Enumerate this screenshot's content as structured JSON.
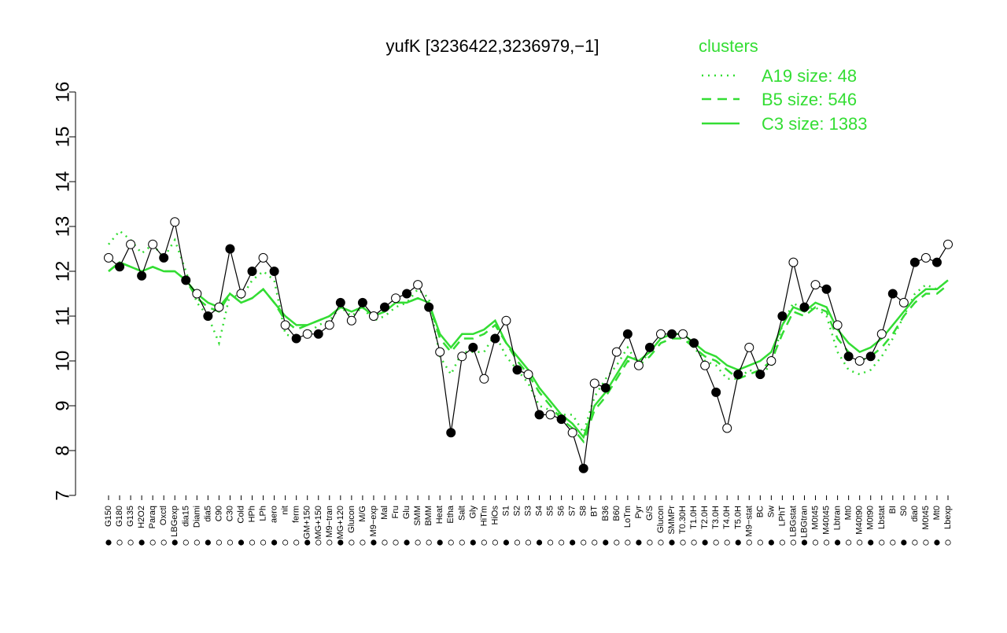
{
  "chart_data": {
    "type": "line",
    "title": "yufK [3236422,3236979,−1]",
    "xlabel": "",
    "ylabel": "",
    "ylim": [
      7,
      16
    ],
    "yticks": [
      7,
      8,
      9,
      10,
      11,
      12,
      13,
      14,
      15,
      16
    ],
    "categories": [
      "G150",
      "G180",
      "G135",
      "H2O2",
      "Paraq",
      "Oxctl",
      "LBGexp",
      "dia15",
      "Diami",
      "dia5",
      "C90",
      "C30",
      "Cold",
      "HPh",
      "LPh",
      "aero",
      "nit",
      "ferm",
      "GM+150",
      "MG+150",
      "M9−tran",
      "MG+120",
      "Glucon",
      "M/G",
      "M9−exp",
      "Mal",
      "Fru",
      "Glu",
      "SMM",
      "BMM",
      "Heat",
      "Etha",
      "Salt",
      "Gly",
      "HiTm",
      "HiOs",
      "S1",
      "S2",
      "S3",
      "S4",
      "S5",
      "S6",
      "S7",
      "S8",
      "BT",
      "B36",
      "B60",
      "LoTm",
      "Pyr",
      "G/S",
      "Glucon",
      "SMMPr",
      "T0.30H",
      "T1.0H",
      "T2.0H",
      "T3.0H",
      "T4.0H",
      "T5.0H",
      "M9−stat",
      "BC",
      "Sw",
      "LPhT",
      "LBGstat",
      "LBGtran",
      "M0t45",
      "M40t45",
      "Lbtran",
      "Mt0",
      "M40t90",
      "M0t90",
      "Lbstat",
      "BI",
      "S0",
      "dia0",
      "M0t45",
      "Mt0",
      "Lbexp"
    ],
    "series": [
      {
        "name": "A19 size: 48",
        "style": "dotted",
        "values": [
          12.6,
          12.9,
          12.7,
          12.4,
          12.6,
          12.3,
          12.7,
          12.0,
          11.3,
          11.0,
          10.4,
          11.5,
          11.4,
          11.8,
          12.0,
          11.8,
          10.6,
          10.5,
          10.6,
          10.8,
          10.9,
          11.2,
          11.0,
          11.2,
          10.9,
          11.0,
          11.2,
          11.3,
          11.6,
          11.4,
          10.1,
          9.7,
          10.2,
          10.2,
          10.2,
          10.6,
          10.1,
          9.8,
          9.5,
          9.0,
          8.9,
          8.8,
          8.8,
          8.4,
          9.2,
          9.6,
          9.9,
          10.3,
          9.9,
          10.2,
          10.5,
          10.6,
          10.6,
          10.3,
          10.0,
          9.9,
          9.6,
          9.6,
          9.8,
          9.7,
          9.9,
          10.8,
          11.3,
          11.1,
          11.2,
          11.0,
          10.2,
          9.8,
          9.7,
          9.8,
          10.1,
          10.5,
          11.0,
          11.5,
          11.7,
          11.6,
          11.8
        ]
      },
      {
        "name": "B5 size: 546",
        "style": "dashed",
        "values": [
          12.0,
          12.2,
          12.1,
          12.0,
          12.1,
          12.0,
          12.0,
          11.8,
          11.4,
          11.2,
          11.1,
          11.5,
          11.3,
          11.4,
          11.6,
          11.3,
          10.9,
          10.7,
          10.8,
          10.9,
          11.0,
          11.2,
          11.1,
          11.2,
          11.0,
          11.1,
          11.3,
          11.3,
          11.4,
          11.3,
          10.5,
          10.2,
          10.5,
          10.5,
          10.6,
          10.8,
          10.4,
          10.0,
          9.7,
          9.3,
          9.0,
          8.7,
          8.5,
          8.2,
          8.9,
          9.2,
          9.6,
          10.0,
          9.9,
          10.1,
          10.4,
          10.5,
          10.5,
          10.3,
          10.1,
          10.0,
          9.8,
          9.6,
          9.7,
          9.8,
          10.0,
          10.6,
          11.1,
          11.0,
          11.2,
          11.1,
          10.5,
          10.2,
          10.0,
          10.1,
          10.3,
          10.6,
          11.0,
          11.3,
          11.5,
          11.5,
          11.7
        ]
      },
      {
        "name": "C3 size: 1383",
        "style": "solid",
        "values": [
          12.0,
          12.2,
          12.1,
          12.0,
          12.1,
          12.0,
          12.0,
          11.8,
          11.5,
          11.3,
          11.2,
          11.5,
          11.3,
          11.4,
          11.6,
          11.3,
          11.0,
          10.8,
          10.8,
          10.9,
          11.0,
          11.2,
          11.1,
          11.2,
          11.0,
          11.1,
          11.3,
          11.3,
          11.4,
          11.3,
          10.6,
          10.3,
          10.6,
          10.6,
          10.7,
          10.9,
          10.4,
          10.1,
          9.8,
          9.4,
          9.1,
          8.8,
          8.6,
          8.3,
          9.0,
          9.3,
          9.7,
          10.1,
          10.0,
          10.2,
          10.5,
          10.6,
          10.6,
          10.4,
          10.2,
          10.1,
          9.9,
          9.8,
          9.9,
          10.0,
          10.2,
          10.8,
          11.2,
          11.1,
          11.3,
          11.2,
          10.7,
          10.4,
          10.2,
          10.3,
          10.5,
          10.8,
          11.1,
          11.4,
          11.6,
          11.6,
          11.8
        ]
      }
    ],
    "observed": {
      "name": "",
      "values": [
        12.3,
        12.1,
        12.6,
        11.9,
        12.6,
        12.3,
        13.1,
        11.8,
        11.5,
        11.0,
        11.2,
        12.5,
        11.5,
        12.0,
        12.3,
        12.0,
        10.8,
        10.5,
        10.6,
        10.6,
        10.8,
        11.3,
        10.9,
        11.3,
        11.0,
        11.2,
        11.4,
        11.5,
        11.7,
        11.2,
        10.2,
        8.4,
        10.1,
        10.3,
        9.6,
        10.5,
        10.9,
        9.8,
        9.7,
        8.8,
        8.8,
        8.7,
        8.4,
        7.6,
        9.5,
        9.4,
        10.2,
        10.6,
        9.9,
        10.3,
        10.6,
        10.6,
        10.6,
        10.4,
        9.9,
        9.3,
        8.5,
        9.7,
        10.3,
        9.7,
        10.0,
        11.0,
        12.2,
        11.2,
        11.7,
        11.6,
        10.8,
        10.1,
        10.0,
        10.1,
        10.6,
        11.5,
        11.3,
        12.2,
        12.3,
        12.2,
        12.6
      ]
    },
    "legend": {
      "title": "clusters",
      "position": "top-right"
    },
    "colors": {
      "series": "#33dd33",
      "observed": "#000000",
      "axis": "#000000",
      "legend_text": "#33dd33"
    },
    "grid": false
  }
}
